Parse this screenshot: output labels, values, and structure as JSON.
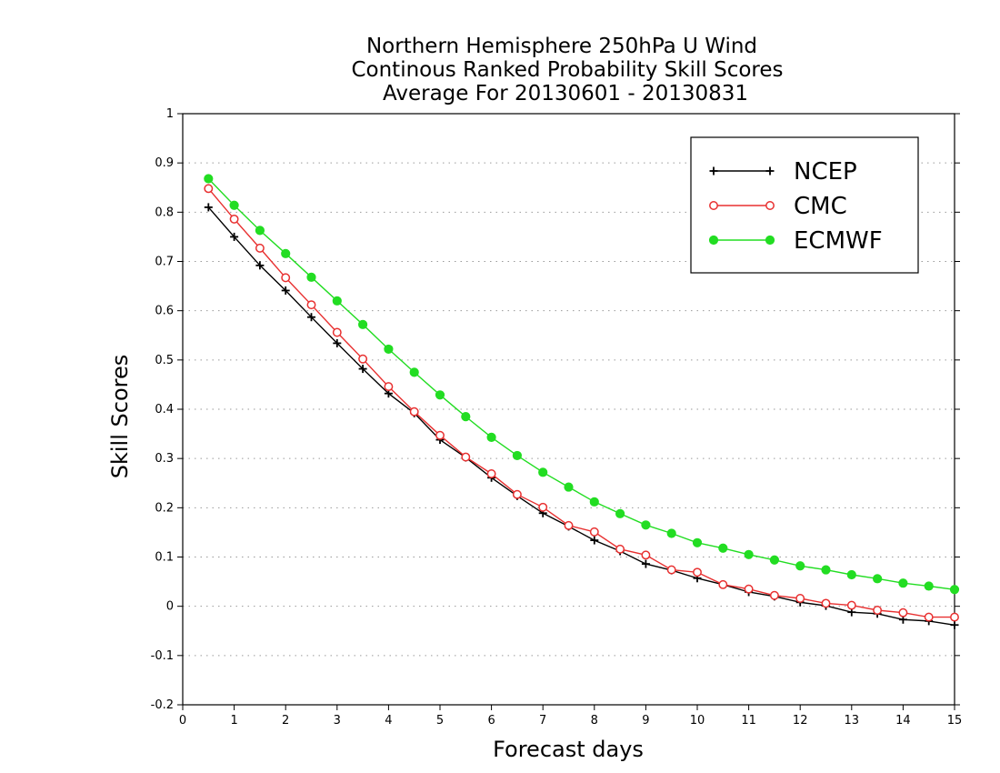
{
  "chart_data": {
    "type": "line",
    "title": [
      "Northern Hemisphere 250hPa U Wind",
      "Continous Ranked Probability Skill Scores",
      "Average For 20130601 - 20130831"
    ],
    "xlabel": "Forecast days",
    "ylabel": "Skill Scores",
    "xlim": [
      0,
      15
    ],
    "ylim": [
      -0.2,
      1
    ],
    "xticks": [
      0,
      1,
      2,
      3,
      4,
      5,
      6,
      7,
      8,
      9,
      10,
      11,
      12,
      13,
      14,
      15
    ],
    "yticks": [
      -0.2,
      -0.1,
      0,
      0.1,
      0.2,
      0.3,
      0.4,
      0.5,
      0.6,
      0.7,
      0.8,
      0.9,
      1
    ],
    "ytick_labels": [
      "-0.2",
      "-0.1",
      "0",
      "0.1",
      "0.2",
      "0.3",
      "0.4",
      "0.5",
      "0.6",
      "0.7",
      "0.8",
      "0.9",
      "1"
    ],
    "grid": "horizontal dotted",
    "legend_position": "top-right",
    "x": [
      0.5,
      1,
      1.5,
      2,
      2.5,
      3,
      3.5,
      4,
      4.5,
      5,
      5.5,
      6,
      6.5,
      7,
      7.5,
      8,
      8.5,
      9,
      9.5,
      10,
      10.5,
      11,
      11.5,
      12,
      12.5,
      13,
      13.5,
      14,
      14.5,
      15
    ],
    "series": [
      {
        "name": "NCEP",
        "color": "#000000",
        "marker": "plus",
        "values": [
          0.81,
          0.75,
          0.692,
          0.641,
          0.587,
          0.534,
          0.482,
          0.432,
          0.392,
          0.338,
          0.302,
          0.261,
          0.224,
          0.189,
          0.162,
          0.134,
          0.112,
          0.086,
          0.073,
          0.057,
          0.044,
          0.029,
          0.02,
          0.008,
          0.001,
          -0.012,
          -0.015,
          -0.027,
          -0.03,
          -0.038
        ]
      },
      {
        "name": "CMC",
        "color": "#e83030",
        "marker": "open-circle",
        "values": [
          0.848,
          0.786,
          0.727,
          0.667,
          0.612,
          0.556,
          0.502,
          0.446,
          0.395,
          0.347,
          0.303,
          0.269,
          0.227,
          0.201,
          0.164,
          0.151,
          0.116,
          0.104,
          0.074,
          0.069,
          0.044,
          0.035,
          0.022,
          0.016,
          0.006,
          0.002,
          -0.008,
          -0.013,
          -0.022,
          -0.022
        ]
      },
      {
        "name": "ECMWF",
        "color": "#22dd22",
        "marker": "filled-circle",
        "values": [
          0.868,
          0.814,
          0.763,
          0.716,
          0.668,
          0.62,
          0.572,
          0.522,
          0.475,
          0.429,
          0.385,
          0.343,
          0.306,
          0.272,
          0.242,
          0.212,
          0.188,
          0.165,
          0.148,
          0.129,
          0.118,
          0.105,
          0.094,
          0.082,
          0.074,
          0.064,
          0.056,
          0.047,
          0.041,
          0.034
        ]
      }
    ]
  }
}
